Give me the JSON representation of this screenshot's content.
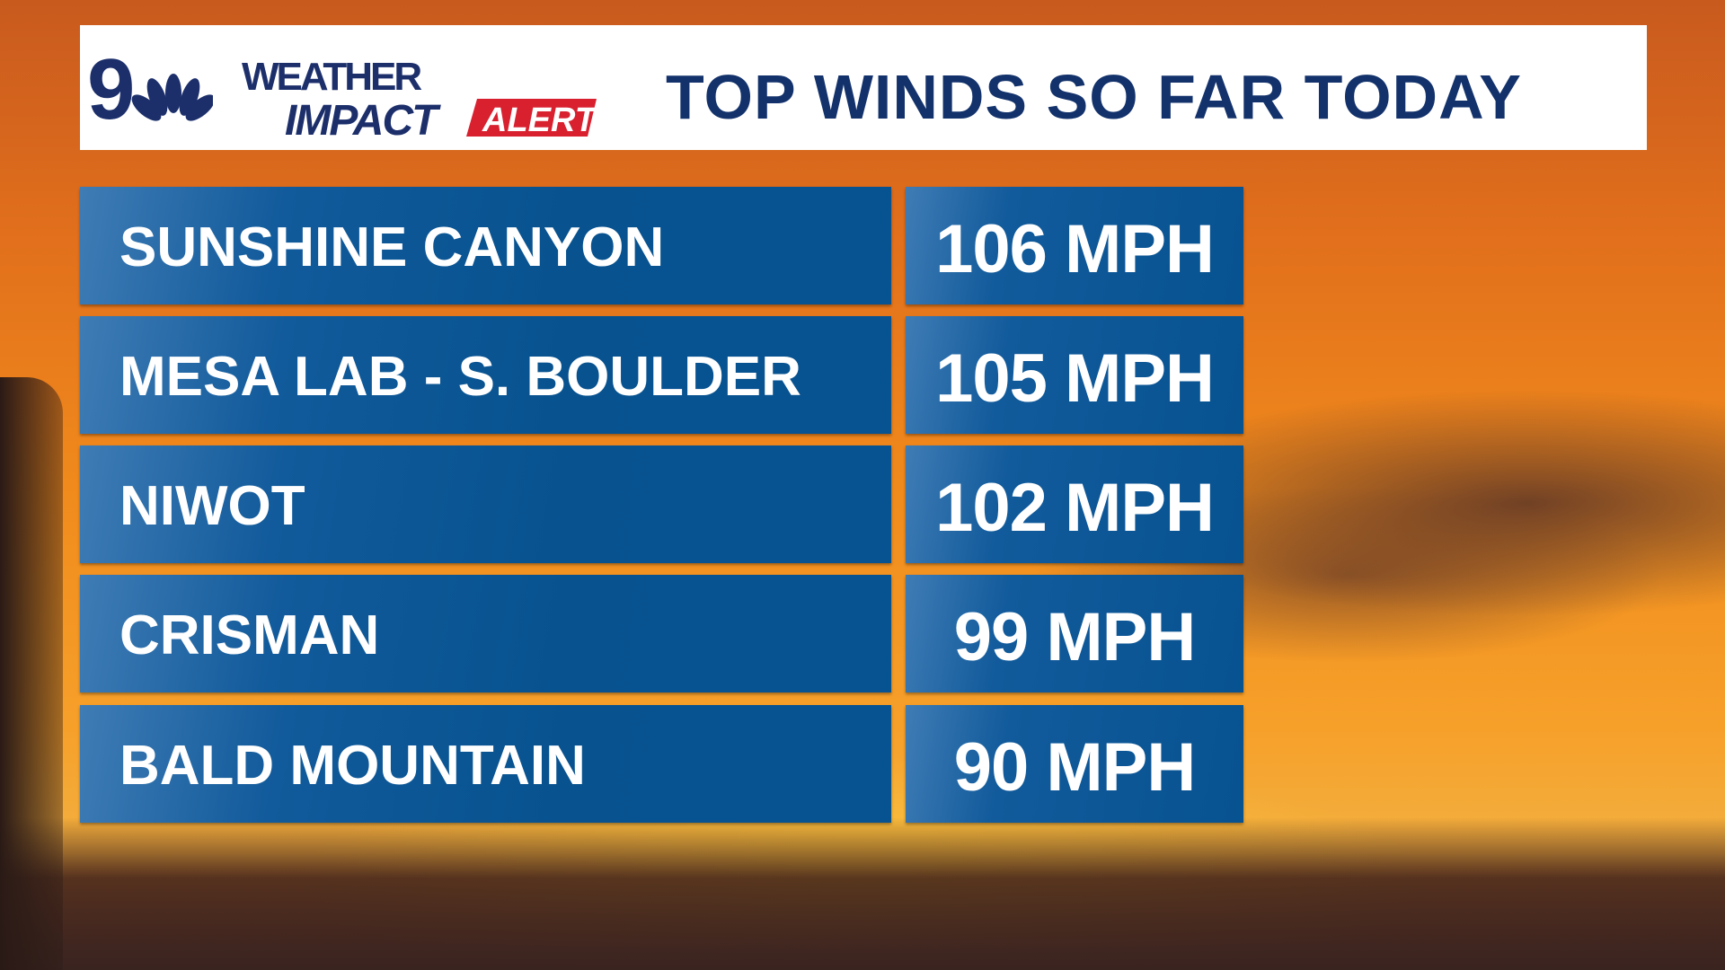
{
  "header": {
    "station_logo": "9 NBC",
    "brand_line1": "WEATHER",
    "brand_line2": "IMPACT",
    "brand_badge": "ALERT",
    "title": "TOP WINDS SO FAR TODAY"
  },
  "colors": {
    "navy": "#13326b",
    "row_blue": "#075291",
    "alert_red": "#d8202f",
    "sky_orange": "#f08a1c"
  },
  "rows": [
    {
      "location": "SUNSHINE CANYON",
      "wind": "106 MPH"
    },
    {
      "location": "MESA LAB - S. BOULDER",
      "wind": "105 MPH"
    },
    {
      "location": "NIWOT",
      "wind": "102 MPH"
    },
    {
      "location": "CRISMAN",
      "wind": "99 MPH"
    },
    {
      "location": "BALD MOUNTAIN",
      "wind": "90 MPH"
    }
  ]
}
